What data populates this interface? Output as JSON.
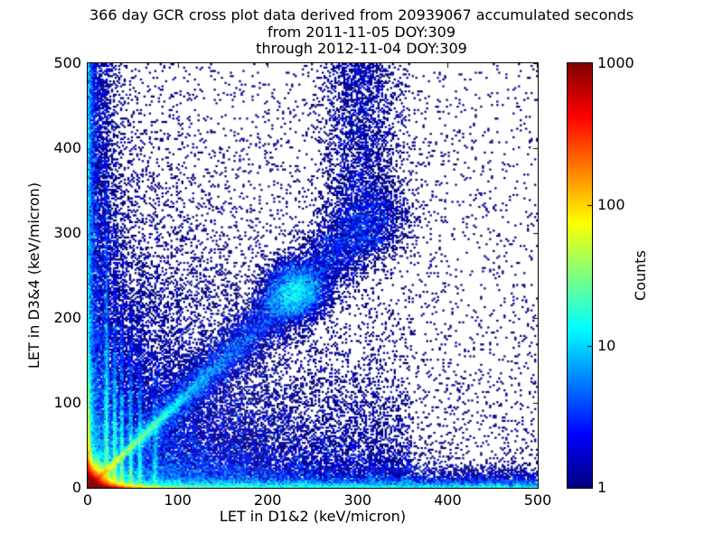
{
  "title": {
    "line1": "366 day GCR cross plot data derived from 20939067 accumulated seconds",
    "line2": "from 2011-11-05 DOY:309",
    "line3": "through 2012-11-04 DOY:309"
  },
  "colors": {
    "background": "#ffffff",
    "frame": "#000000",
    "text": "#000000",
    "zero_count_color": "#ffffff",
    "count_1_color": "#000080",
    "count_10_color": "#00d4ff",
    "count_100_color": "#ffd400",
    "count_1000_color": "#800000"
  },
  "chart_data": {
    "type": "heatmap",
    "subtype": "2D histogram cross plot, log-scale counts, jet colormap, white = zero counts",
    "title": "366 day GCR cross plot data derived from 20939067 accumulated seconds",
    "subtitle_lines": [
      "from 2011-11-05 DOY:309",
      "through 2012-11-04 DOY:309"
    ],
    "xlabel": "LET in D1&2 (keV/micron)",
    "ylabel": "LET in D3&4 (keV/micron)",
    "xlim": [
      0,
      500
    ],
    "ylim": [
      0,
      500
    ],
    "xticks": [
      0,
      100,
      200,
      300,
      400,
      500
    ],
    "yticks": [
      0,
      100,
      200,
      300,
      400,
      500
    ],
    "grid": false,
    "colorbar": {
      "label": "Counts",
      "scale": "log",
      "min": 1,
      "max": 1000,
      "tick_values": [
        1,
        10,
        100,
        1000
      ],
      "inner_tick_values": [
        10,
        100
      ],
      "colormap": "jet",
      "position": "right"
    },
    "features": [
      "extremely dense hot spot (red, >1000 counts) at the origin within ~15 keV/micron of (0,0)",
      "hot band along y=0: red to x~35, fading yellow/green/cyan, then blue speckle out to x=500",
      "dense band along x=0 the full height; green-cyan below y~150, blue above",
      "yellow-green diagonal ridge y=x from the origin to ~(80,80), continuing as a dense blue band to ~(310,310)",
      "dense blue clump centered on the diagonal near (230,230)",
      "diagonal band bends upward near x~300 and fans out to the top edge",
      "faint vertical streaks rising from the bottom band at x ~ 21, 30, 38, 48, 58, 75",
      "sparse dark-blue single-count speckle over the whole plane, denser near both axes and under the diagonal"
    ],
    "density_model": {
      "seed": 20939067,
      "bins": 250,
      "components": [
        {
          "name": "origin-hotspot",
          "kind": "xy",
          "n": 90000,
          "x": {
            "dist": "exp",
            "scale": 7
          },
          "y": {
            "dist": "exp",
            "scale": 7
          }
        },
        {
          "name": "bottom-band-hot",
          "kind": "xy",
          "n": 30000,
          "x": {
            "dist": "exp",
            "scale": 14
          },
          "y": {
            "dist": "exp",
            "scale": 1.8
          }
        },
        {
          "name": "bottom-band-mid",
          "kind": "xy",
          "n": 3000,
          "x": {
            "dist": "exp",
            "scale": 60
          },
          "y": {
            "dist": "exp",
            "scale": 2
          }
        },
        {
          "name": "bottom-band-far",
          "kind": "xy",
          "n": 2500,
          "x": {
            "dist": "uniform",
            "min": 0,
            "max": 500
          },
          "y": {
            "dist": "exp",
            "scale": 2.2
          }
        },
        {
          "name": "bottom-speckle",
          "kind": "xy",
          "n": 9000,
          "x": {
            "dist": "uniform",
            "min": 0,
            "max": 500
          },
          "y": {
            "dist": "exp",
            "scale": 7
          }
        },
        {
          "name": "left-band-hot",
          "kind": "xy",
          "n": 6000,
          "x": {
            "dist": "exp",
            "scale": 1.5
          },
          "y": {
            "dist": "exp",
            "scale": 45
          }
        },
        {
          "name": "left-band-speckle",
          "kind": "xy",
          "n": 6000,
          "x": {
            "dist": "exp",
            "scale": 10
          },
          "y": {
            "dist": "uniform",
            "min": 0,
            "max": 500
          }
        },
        {
          "name": "left-band-far",
          "kind": "xy",
          "n": 2000,
          "x": {
            "dist": "exp",
            "scale": 2.5
          },
          "y": {
            "dist": "uniform",
            "min": 0,
            "max": 500
          }
        },
        {
          "name": "diagonal-ridge",
          "kind": "diagonal",
          "n": 8000,
          "d": {
            "dist": "exp",
            "scale": 45
          },
          "sigma0": 1.2,
          "sigmaSlope": 0.02
        },
        {
          "name": "diagonal-band",
          "kind": "diagonal",
          "n": 10000,
          "d": {
            "dist": "uniform",
            "min": 50,
            "max": 330
          },
          "sigma0": 5,
          "sigmaSlope": 0.05
        },
        {
          "name": "diagonal-blob",
          "kind": "xy",
          "n": 4500,
          "x": {
            "dist": "normal",
            "mean": 230,
            "sd": 17
          },
          "y": {
            "dist": "normal",
            "mean": 230,
            "sd": 17
          }
        },
        {
          "name": "diagonal-upturn",
          "kind": "xy",
          "n": 3000,
          "x": {
            "dist": "normal",
            "mean": 305,
            "sd": 22
          },
          "y": {
            "dist": "uniform",
            "min": 280,
            "max": 500
          }
        },
        {
          "name": "streak-1",
          "kind": "xy",
          "n": 3000,
          "x": {
            "dist": "normal",
            "mean": 21,
            "sd": 1.2
          },
          "y": {
            "dist": "exp",
            "scale": 110
          }
        },
        {
          "name": "streak-2",
          "kind": "xy",
          "n": 2200,
          "x": {
            "dist": "normal",
            "mean": 30,
            "sd": 1.2
          },
          "y": {
            "dist": "exp",
            "scale": 70
          }
        },
        {
          "name": "streak-3",
          "kind": "xy",
          "n": 1700,
          "x": {
            "dist": "normal",
            "mean": 38,
            "sd": 1.2
          },
          "y": {
            "dist": "exp",
            "scale": 60
          }
        },
        {
          "name": "streak-4",
          "kind": "xy",
          "n": 1400,
          "x": {
            "dist": "normal",
            "mean": 48,
            "sd": 1.2
          },
          "y": {
            "dist": "exp",
            "scale": 55
          }
        },
        {
          "name": "streak-5",
          "kind": "xy",
          "n": 1100,
          "x": {
            "dist": "normal",
            "mean": 58,
            "sd": 1.3
          },
          "y": {
            "dist": "exp",
            "scale": 50
          }
        },
        {
          "name": "streak-6",
          "kind": "xy",
          "n": 700,
          "x": {
            "dist": "normal",
            "mean": 75,
            "sd": 1.5
          },
          "y": {
            "dist": "exp",
            "scale": 45
          }
        },
        {
          "name": "under-diagonal",
          "kind": "xy",
          "n": 5000,
          "x": {
            "dist": "uniform",
            "min": 80,
            "max": 360
          },
          "y": {
            "dist": "exp",
            "scale": 50
          }
        },
        {
          "name": "bg-low",
          "kind": "xy",
          "n": 18000,
          "x": {
            "dist": "exp",
            "scale": 80
          },
          "y": {
            "dist": "exp",
            "scale": 80
          }
        },
        {
          "name": "bg-wide",
          "kind": "xy",
          "n": 6000,
          "x": {
            "dist": "exp",
            "scale": 200
          },
          "y": {
            "dist": "exp",
            "scale": 200
          }
        },
        {
          "name": "bg-uniform",
          "kind": "xy",
          "n": 2600,
          "x": {
            "dist": "uniform",
            "min": 0,
            "max": 500
          },
          "y": {
            "dist": "uniform",
            "min": 0,
            "max": 500
          }
        }
      ]
    }
  }
}
